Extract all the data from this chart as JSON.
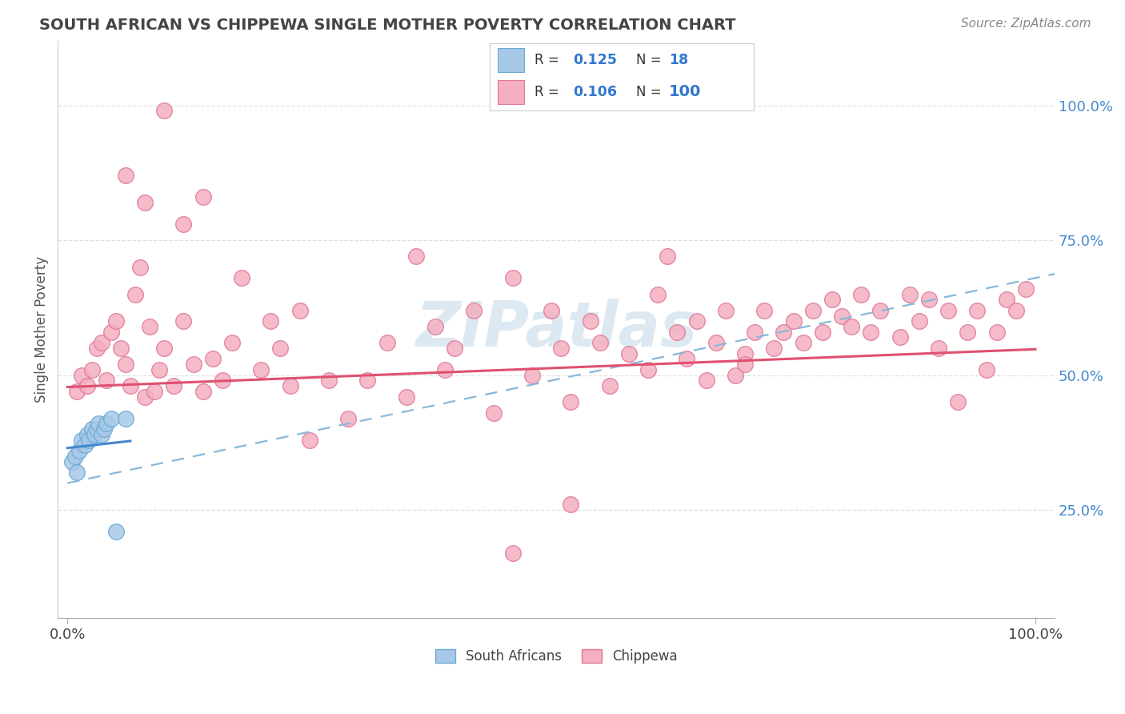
{
  "title": "SOUTH AFRICAN VS CHIPPEWA SINGLE MOTHER POVERTY CORRELATION CHART",
  "source": "Source: ZipAtlas.com",
  "ylabel": "Single Mother Poverty",
  "ytick_labels": [
    "25.0%",
    "50.0%",
    "75.0%",
    "100.0%"
  ],
  "ytick_values": [
    0.25,
    0.5,
    0.75,
    1.0
  ],
  "xtick_labels": [
    "0.0%",
    "100.0%"
  ],
  "xtick_values": [
    0.0,
    1.0
  ],
  "legend_r": [
    0.125,
    0.106
  ],
  "legend_n": [
    18,
    100
  ],
  "blue_fill": "#a8c8e8",
  "blue_edge": "#6aaad4",
  "blue_line_color": "#4488cc",
  "blue_dash_color": "#88b8d8",
  "pink_fill": "#f4b0c0",
  "pink_edge": "#e07898",
  "pink_line_color": "#e05070",
  "watermark": "ZIPatlas",
  "watermark_color": "#c0d8e8",
  "grid_color": "#dddddd",
  "title_color": "#444444",
  "source_color": "#888888",
  "ytick_color": "#4488cc",
  "sa_x": [
    0.005,
    0.008,
    0.01,
    0.012,
    0.015,
    0.018,
    0.02,
    0.022,
    0.025,
    0.028,
    0.03,
    0.032,
    0.035,
    0.038,
    0.04,
    0.045,
    0.05,
    0.06
  ],
  "sa_y": [
    0.34,
    0.35,
    0.32,
    0.36,
    0.38,
    0.37,
    0.39,
    0.38,
    0.4,
    0.39,
    0.4,
    0.41,
    0.39,
    0.4,
    0.41,
    0.42,
    0.21,
    0.42
  ],
  "chip_x": [
    0.01,
    0.015,
    0.02,
    0.025,
    0.03,
    0.035,
    0.04,
    0.045,
    0.05,
    0.055,
    0.06,
    0.065,
    0.07,
    0.075,
    0.08,
    0.085,
    0.09,
    0.095,
    0.1,
    0.11,
    0.12,
    0.13,
    0.14,
    0.15,
    0.16,
    0.17,
    0.18,
    0.2,
    0.21,
    0.22,
    0.23,
    0.24,
    0.25,
    0.27,
    0.29,
    0.31,
    0.33,
    0.35,
    0.36,
    0.38,
    0.39,
    0.4,
    0.42,
    0.44,
    0.46,
    0.48,
    0.5,
    0.51,
    0.52,
    0.54,
    0.55,
    0.56,
    0.58,
    0.6,
    0.61,
    0.62,
    0.63,
    0.64,
    0.65,
    0.66,
    0.67,
    0.68,
    0.69,
    0.7,
    0.71,
    0.72,
    0.73,
    0.74,
    0.75,
    0.76,
    0.77,
    0.78,
    0.79,
    0.8,
    0.81,
    0.82,
    0.83,
    0.84,
    0.86,
    0.87,
    0.88,
    0.89,
    0.9,
    0.91,
    0.92,
    0.93,
    0.94,
    0.95,
    0.96,
    0.97,
    0.98,
    0.99,
    0.06,
    0.08,
    0.1,
    0.12,
    0.14,
    0.46,
    0.52,
    0.7
  ],
  "chip_y": [
    0.47,
    0.5,
    0.48,
    0.51,
    0.55,
    0.56,
    0.49,
    0.58,
    0.6,
    0.55,
    0.52,
    0.48,
    0.65,
    0.7,
    0.46,
    0.59,
    0.47,
    0.51,
    0.55,
    0.48,
    0.6,
    0.52,
    0.47,
    0.53,
    0.49,
    0.56,
    0.68,
    0.51,
    0.6,
    0.55,
    0.48,
    0.62,
    0.38,
    0.49,
    0.42,
    0.49,
    0.56,
    0.46,
    0.72,
    0.59,
    0.51,
    0.55,
    0.62,
    0.43,
    0.68,
    0.5,
    0.62,
    0.55,
    0.45,
    0.6,
    0.56,
    0.48,
    0.54,
    0.51,
    0.65,
    0.72,
    0.58,
    0.53,
    0.6,
    0.49,
    0.56,
    0.62,
    0.5,
    0.54,
    0.58,
    0.62,
    0.55,
    0.58,
    0.6,
    0.56,
    0.62,
    0.58,
    0.64,
    0.61,
    0.59,
    0.65,
    0.58,
    0.62,
    0.57,
    0.65,
    0.6,
    0.64,
    0.55,
    0.62,
    0.45,
    0.58,
    0.62,
    0.51,
    0.58,
    0.64,
    0.62,
    0.66,
    0.87,
    0.82,
    0.99,
    0.78,
    0.83,
    0.17,
    0.26,
    0.52
  ]
}
